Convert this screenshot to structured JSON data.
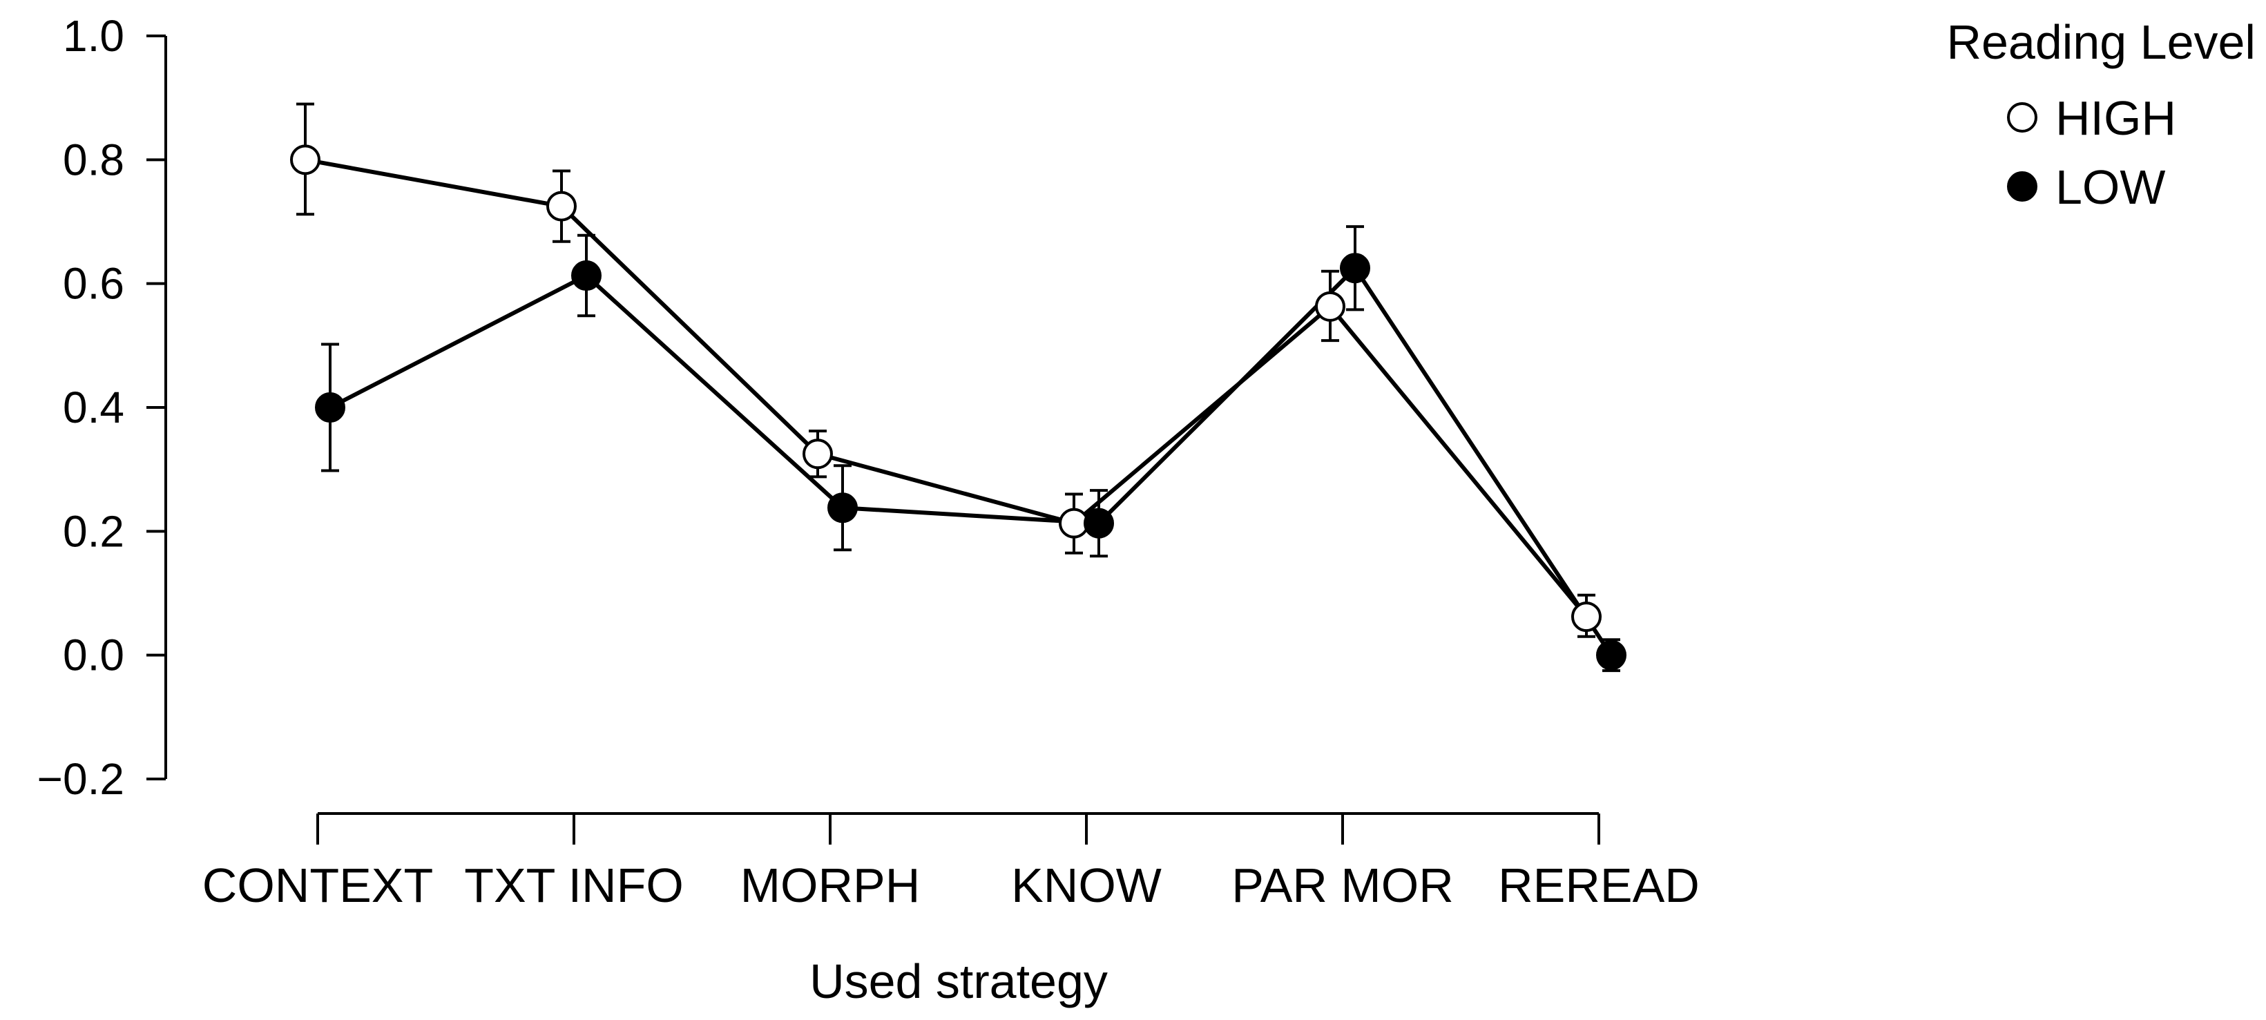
{
  "chart_data": {
    "type": "line",
    "title": "",
    "xlabel": "Used strategy",
    "ylabel": "",
    "categories": [
      "CONTEXT",
      "TXT INFO",
      "MORPH",
      "KNOW",
      "PAR MOR",
      "REREAD"
    ],
    "ylim": [
      -0.2,
      1.0
    ],
    "yticks": [
      -0.2,
      0.0,
      0.2,
      0.4,
      0.6,
      0.8,
      1.0
    ],
    "ytick_labels": [
      "−0.2",
      "0.0",
      "0.2",
      "0.4",
      "0.6",
      "0.8",
      "1.0"
    ],
    "grid": false,
    "legend": {
      "title": "Reading Level",
      "position": "top-right"
    },
    "series": [
      {
        "name": "HIGH",
        "marker": "open-circle",
        "fill": "#ffffff",
        "values": [
          0.8,
          0.725,
          0.325,
          0.213,
          0.563,
          0.062
        ],
        "error_low": [
          0.712,
          0.668,
          0.288,
          0.165,
          0.508,
          0.03
        ],
        "error_high": [
          0.89,
          0.782,
          0.362,
          0.26,
          0.62,
          0.097
        ]
      },
      {
        "name": "LOW",
        "marker": "filled-circle",
        "fill": "#000000",
        "values": [
          0.4,
          0.613,
          0.238,
          0.213,
          0.625,
          0.0
        ],
        "error_low": [
          0.298,
          0.548,
          0.17,
          0.16,
          0.558,
          -0.025
        ],
        "error_high": [
          0.502,
          0.678,
          0.306,
          0.266,
          0.692,
          0.025
        ]
      }
    ]
  }
}
